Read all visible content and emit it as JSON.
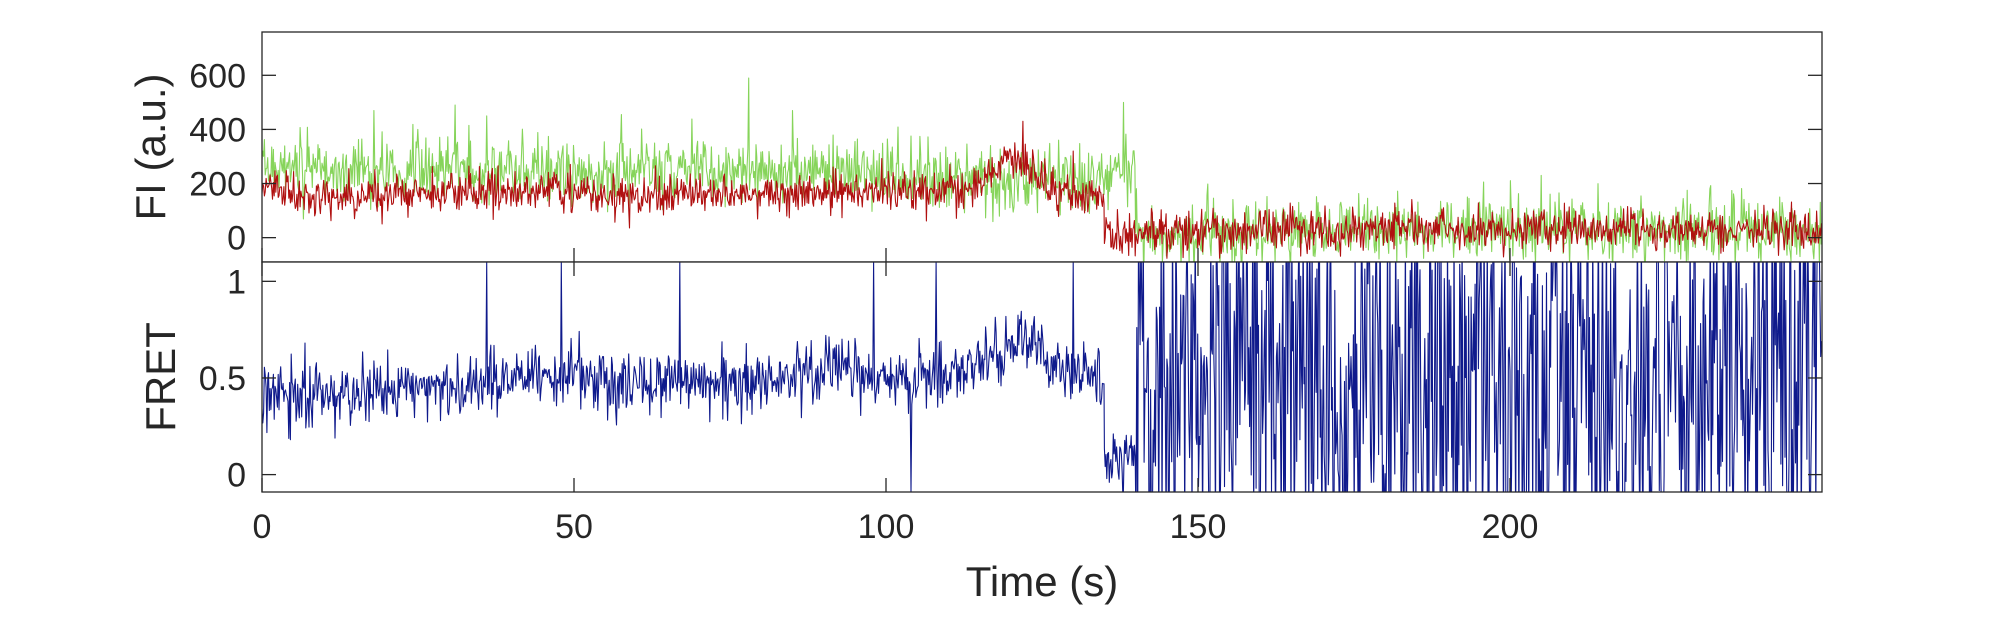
{
  "chart_data": [
    {
      "type": "line",
      "ylabel": "FI (a.u.)",
      "xlim": [
        0,
        250
      ],
      "ylim": [
        -90,
        760
      ],
      "yticks": [
        0,
        200,
        400,
        600
      ],
      "ytick_labels": [
        "0",
        "200",
        "400",
        "600"
      ],
      "grid": false,
      "series": [
        {
          "color": "#86d45a",
          "segments": [
            {
              "x": [
                0,
                10,
                20,
                30,
                40,
                50,
                60,
                70,
                80,
                90,
                100,
                110,
                120,
                130,
                140
              ],
              "y": [
                270,
                250,
                240,
                255,
                250,
                250,
                240,
                245,
                250,
                240,
                240,
                220,
                210,
                215,
                260
              ]
            },
            {
              "x": [
                140,
                150,
                160,
                170,
                180,
                190,
                200,
                210,
                220,
                230,
                240,
                250
              ],
              "y": [
                10,
                20,
                30,
                25,
                30,
                35,
                30,
                35,
                30,
                35,
                30,
                30
              ]
            }
          ],
          "noise": 65,
          "spikes": [
            [
              18,
              470
            ],
            [
              31,
              490
            ],
            [
              36,
              450
            ],
            [
              78,
              590
            ],
            [
              85,
              470
            ],
            [
              138,
              500
            ],
            [
              205,
              230
            ],
            [
              232,
              180
            ]
          ]
        },
        {
          "color": "#b01010",
          "segments": [
            {
              "x": [
                0,
                10,
                20,
                30,
                40,
                50,
                60,
                70,
                80,
                90,
                100,
                110,
                115,
                120,
                125,
                130,
                135
              ],
              "y": [
                190,
                150,
                155,
                170,
                175,
                165,
                160,
                155,
                160,
                165,
                170,
                165,
                200,
                300,
                210,
                160,
                150
              ]
            },
            {
              "x": [
                135,
                150,
                160,
                170,
                180,
                190,
                200,
                210,
                220,
                230,
                240,
                250
              ],
              "y": [
                15,
                20,
                20,
                25,
                30,
                35,
                30,
                30,
                35,
                30,
                30,
                25
              ]
            }
          ],
          "noise": 42,
          "spikes": [
            [
              122,
              430
            ],
            [
              130,
              320
            ]
          ]
        }
      ]
    },
    {
      "type": "line",
      "xlabel": "Time (s)",
      "ylabel": "FRET",
      "xlim": [
        0,
        250
      ],
      "ylim": [
        -0.09,
        1.1
      ],
      "xticks": [
        0,
        50,
        100,
        150,
        200
      ],
      "xtick_labels": [
        "0",
        "50",
        "100",
        "150",
        "200"
      ],
      "yticks": [
        0,
        0.5,
        1
      ],
      "ytick_labels": [
        "0",
        "0.5",
        "1"
      ],
      "grid": false,
      "series": [
        {
          "color": "#0f1a8c",
          "segments": [
            {
              "x": [
                0,
                10,
                20,
                30,
                40,
                50,
                60,
                70,
                80,
                90,
                100,
                110,
                118,
                122,
                128,
                135
              ],
              "y": [
                0.4,
                0.42,
                0.45,
                0.44,
                0.5,
                0.52,
                0.45,
                0.48,
                0.47,
                0.55,
                0.5,
                0.5,
                0.62,
                0.72,
                0.55,
                0.5
              ]
            },
            {
              "x": [
                135,
                140,
                250
              ],
              "y": [
                0.05,
                0.1,
                0.5
              ]
            }
          ],
          "noise": 0.09,
          "noisy_after": 140,
          "spikes": [
            [
              36,
              1.1
            ],
            [
              48,
              1.1
            ],
            [
              67,
              1.1
            ],
            [
              98,
              1.1
            ],
            [
              104,
              -0.09
            ],
            [
              108,
              1.1
            ],
            [
              130,
              1.1
            ]
          ]
        }
      ]
    }
  ]
}
